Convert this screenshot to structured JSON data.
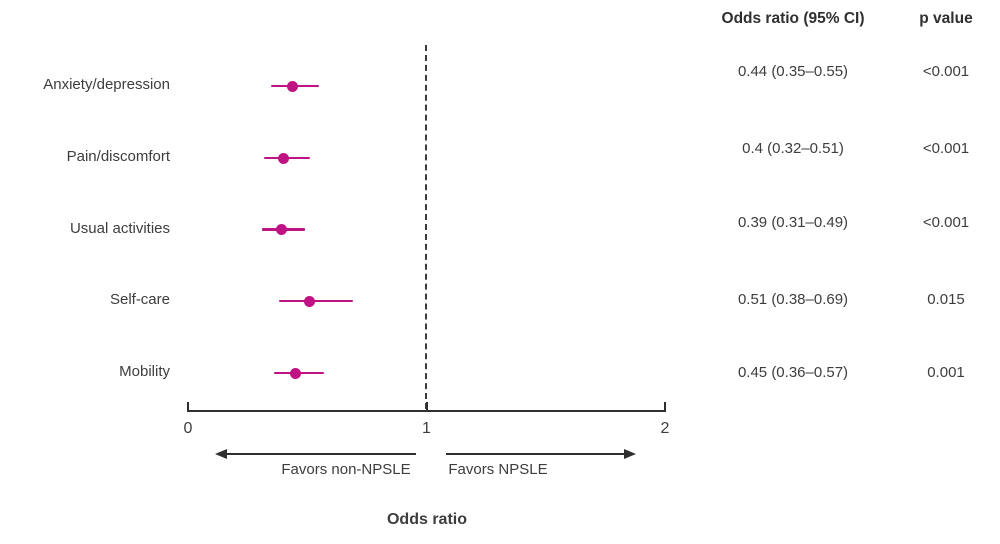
{
  "table": {
    "or_header": "Odds ratio (95% CI)",
    "p_header": "p value"
  },
  "chart_data": {
    "type": "forest",
    "title": "",
    "categories": [
      "Anxiety/depression",
      "Pain/discomfort",
      "Usual activities",
      "Self-care",
      "Mobility"
    ],
    "series": [
      {
        "name": "Odds ratio",
        "values": [
          0.44,
          0.4,
          0.39,
          0.51,
          0.45
        ],
        "ci_low": [
          0.35,
          0.32,
          0.31,
          0.38,
          0.36
        ],
        "ci_high": [
          0.55,
          0.51,
          0.49,
          0.69,
          0.57
        ]
      }
    ],
    "or_labels": [
      "0.44 (0.35–0.55)",
      "0.4 (0.32–0.51)",
      "0.39 (0.31–0.49)",
      "0.51 (0.38–0.69)",
      "0.45 (0.36–0.57)"
    ],
    "p_values": [
      "<0.001",
      "<0.001",
      "<0.001",
      "0.015",
      "0.001"
    ],
    "xlabel": "Odds ratio",
    "x_ticks": [
      "0",
      "1",
      "2"
    ],
    "xlim": [
      0,
      2
    ],
    "reference_line": 1,
    "left_arrow_label": "Favors non-NPSLE",
    "right_arrow_label": "Favors NPSLE",
    "legend_position": "none",
    "grid": false,
    "marker_color": "#c01383",
    "axis_color": "#2f2f2f",
    "text_color": "#3d3d3d"
  }
}
